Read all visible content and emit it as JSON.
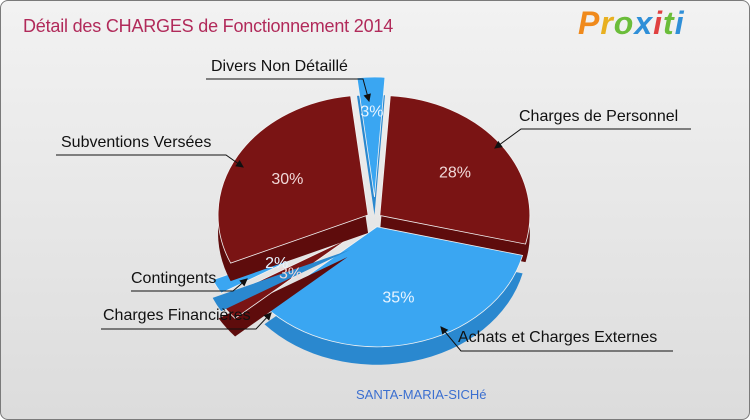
{
  "title": "Détail des CHARGES de Fonctionnement 2014",
  "logo": {
    "text": "Proxiti",
    "letters": [
      "P",
      "r",
      "o",
      "x",
      "i",
      "t",
      "i"
    ],
    "colors": [
      "#f08a1c",
      "#e8b020",
      "#6bbd3a",
      "#2f8fd8",
      "#e04040",
      "#6bbd3a",
      "#2f8fd8"
    ]
  },
  "footer": "SANTA-MARIA-SICHé",
  "colors": {
    "red": "#7a1414",
    "red_side": "#5e0c0c",
    "blue": "#3aa6f2",
    "blue_side": "#2a88cf"
  },
  "chart_data": {
    "type": "pie",
    "title": "Détail des CHARGES de Fonctionnement 2014",
    "series": [
      {
        "name": "Charges de Personnel",
        "value": 28,
        "label": "28%",
        "color": "red"
      },
      {
        "name": "Achats et Charges Externes",
        "value": 35,
        "label": "35%",
        "color": "blue"
      },
      {
        "name": "Charges Financières",
        "value": 3,
        "label": "3%",
        "color": "red"
      },
      {
        "name": "Contingents",
        "value": 2,
        "label": "2%",
        "color": "blue"
      },
      {
        "name": "Subventions Versées",
        "value": 30,
        "label": "30%",
        "color": "red"
      },
      {
        "name": "Divers Non Détaillé",
        "value": 3,
        "label": "3%",
        "color": "blue"
      }
    ]
  }
}
